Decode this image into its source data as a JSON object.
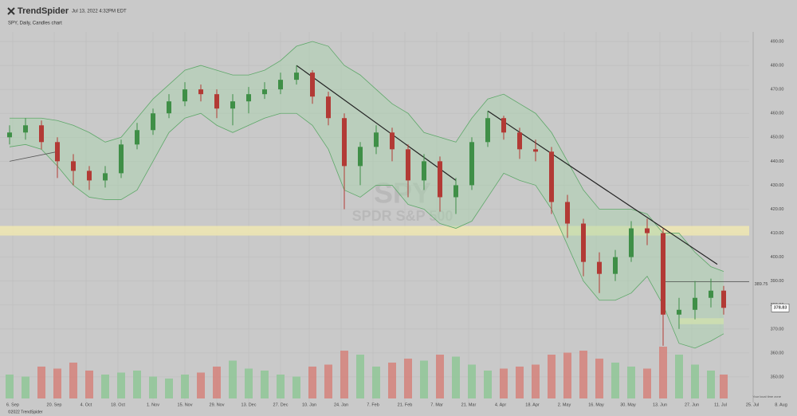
{
  "header": {
    "brand": "TrendSpider",
    "timestamp": "Jul 13, 2022 4:32PM EDT",
    "subtitle": "SPY, Daily, Candles chart"
  },
  "watermark": {
    "symbol": "SPY",
    "name": "SPDR S&P 500"
  },
  "footer": {
    "copyright": "©2022 TrendSpider",
    "timezone": "Your local time zone"
  },
  "chart_data": {
    "type": "candlestick",
    "x": [
      0,
      5,
      10,
      15,
      20,
      25,
      30,
      35,
      40,
      45,
      50,
      55,
      60,
      65,
      70,
      75,
      80,
      85,
      90,
      95,
      100,
      105,
      110,
      115,
      120,
      125,
      130,
      135,
      140,
      145,
      150,
      155,
      160,
      165,
      170,
      175,
      180,
      185,
      190,
      195,
      200,
      205,
      210,
      215,
      220,
      224
    ],
    "open": [
      450,
      452,
      455,
      448,
      440,
      436,
      432,
      435,
      447,
      453,
      460,
      465,
      470,
      468,
      462,
      465,
      468,
      470,
      474,
      477,
      467,
      458,
      438,
      446,
      452,
      445,
      432,
      440,
      425,
      430,
      448,
      458,
      452,
      445,
      444,
      423,
      414,
      398,
      393,
      400,
      412,
      410,
      376,
      378,
      383,
      386
    ],
    "high": [
      455,
      458,
      457,
      450,
      443,
      438,
      438,
      449,
      456,
      462,
      468,
      473,
      472,
      470,
      468,
      471,
      473,
      477,
      480,
      478,
      469,
      460,
      448,
      455,
      454,
      447,
      443,
      442,
      433,
      450,
      461,
      459,
      454,
      449,
      446,
      426,
      416,
      402,
      403,
      415,
      416,
      412,
      383,
      390,
      391,
      388
    ],
    "low": [
      447,
      449,
      445,
      433,
      430,
      428,
      429,
      433,
      445,
      451,
      458,
      463,
      465,
      458,
      455,
      460,
      466,
      468,
      472,
      464,
      455,
      420,
      430,
      443,
      440,
      425,
      428,
      419,
      418,
      428,
      446,
      449,
      441,
      440,
      418,
      408,
      392,
      385,
      390,
      398,
      405,
      363,
      370,
      374,
      379,
      376
    ],
    "close": [
      452,
      455,
      448,
      440,
      436,
      432,
      435,
      447,
      453,
      460,
      465,
      470,
      468,
      462,
      465,
      468,
      470,
      474,
      477,
      467,
      458,
      438,
      446,
      452,
      445,
      432,
      440,
      425,
      430,
      448,
      458,
      452,
      445,
      444,
      423,
      414,
      398,
      393,
      400,
      412,
      410,
      376,
      378,
      383,
      386,
      378.83
    ],
    "bb_upper": [
      458,
      458,
      458,
      457,
      455,
      452,
      448,
      450,
      458,
      466,
      472,
      478,
      480,
      478,
      476,
      476,
      478,
      482,
      488,
      490,
      488,
      480,
      476,
      470,
      464,
      460,
      452,
      450,
      448,
      458,
      466,
      468,
      464,
      460,
      452,
      440,
      428,
      420,
      420,
      420,
      418,
      410,
      410,
      402,
      396,
      394
    ],
    "bb_lower": [
      446,
      447,
      445,
      438,
      430,
      425,
      424,
      424,
      428,
      440,
      452,
      458,
      460,
      455,
      452,
      455,
      458,
      460,
      460,
      455,
      445,
      428,
      425,
      430,
      430,
      422,
      420,
      414,
      412,
      415,
      425,
      435,
      432,
      430,
      420,
      405,
      390,
      382,
      382,
      385,
      392,
      380,
      364,
      362,
      365,
      368
    ],
    "volume": [
      60,
      55,
      80,
      75,
      90,
      70,
      60,
      65,
      70,
      55,
      50,
      60,
      65,
      80,
      95,
      75,
      70,
      60,
      55,
      80,
      85,
      120,
      110,
      80,
      90,
      100,
      95,
      110,
      105,
      85,
      70,
      75,
      80,
      85,
      110,
      115,
      120,
      100,
      90,
      80,
      75,
      130,
      110,
      85,
      70,
      60
    ],
    "trendlines": [
      {
        "x": [
          0,
          15
        ],
        "y": [
          440,
          444
        ]
      },
      {
        "x": [
          90,
          140
        ],
        "y": [
          480,
          432
        ]
      },
      {
        "x": [
          150,
          222
        ],
        "y": [
          461,
          397
        ]
      }
    ],
    "zones": [
      {
        "x": [
          -3,
          232
        ],
        "y": [
          409,
          413
        ]
      },
      {
        "x": [
          210,
          224
        ],
        "y": [
          372,
          374.5
        ]
      }
    ],
    "level": 389.75,
    "up_color": "#3f8f47",
    "down_color": "#b23a35",
    "xlim": [
      -3,
      232
    ],
    "ylim": [
      341,
      494
    ],
    "xticks": [
      {
        "value": 1,
        "label": "6. Sep"
      },
      {
        "value": 14,
        "label": "20. Sep"
      },
      {
        "value": 24,
        "label": "4. Oct"
      },
      {
        "value": 34,
        "label": "18. Oct"
      },
      {
        "value": 45,
        "label": "1. Nov"
      },
      {
        "value": 55,
        "label": "15. Nov"
      },
      {
        "value": 65,
        "label": "29. Nov"
      },
      {
        "value": 75,
        "label": "13. Dec"
      },
      {
        "value": 85,
        "label": "27. Dec"
      },
      {
        "value": 94,
        "label": "10. Jan"
      },
      {
        "value": 104,
        "label": "24. Jan"
      },
      {
        "value": 114,
        "label": "7. Feb"
      },
      {
        "value": 124,
        "label": "21. Feb"
      },
      {
        "value": 134,
        "label": "7. Mar"
      },
      {
        "value": 144,
        "label": "21. Mar"
      },
      {
        "value": 154,
        "label": "4. Apr"
      },
      {
        "value": 164,
        "label": "18. Apr"
      },
      {
        "value": 174,
        "label": "2. May"
      },
      {
        "value": 184,
        "label": "16. May"
      },
      {
        "value": 194,
        "label": "30. May"
      },
      {
        "value": 204,
        "label": "13. Jun"
      },
      {
        "value": 214,
        "label": "27. Jun"
      },
      {
        "value": 223,
        "label": "11. Jul"
      },
      {
        "value": 233,
        "label": "25. Jul"
      },
      {
        "value": 242,
        "label": "8. Aug"
      }
    ],
    "yticks": [
      {
        "value": 350,
        "label": "350.00"
      },
      {
        "value": 360,
        "label": "360.00"
      },
      {
        "value": 370,
        "label": "370.00"
      },
      {
        "value": 380,
        "label": "380.00"
      },
      {
        "value": 390,
        "label": "390.00"
      },
      {
        "value": 400,
        "label": "400.00"
      },
      {
        "value": 410,
        "label": "410.00"
      },
      {
        "value": 420,
        "label": "420.00"
      },
      {
        "value": 430,
        "label": "430.00"
      },
      {
        "value": 440,
        "label": "440.00"
      },
      {
        "value": 450,
        "label": "450.00"
      },
      {
        "value": 460,
        "label": "460.00"
      },
      {
        "value": 470,
        "label": "470.00"
      },
      {
        "value": 480,
        "label": "480.00"
      },
      {
        "value": 490,
        "label": "490.00"
      }
    ],
    "grid": true
  }
}
